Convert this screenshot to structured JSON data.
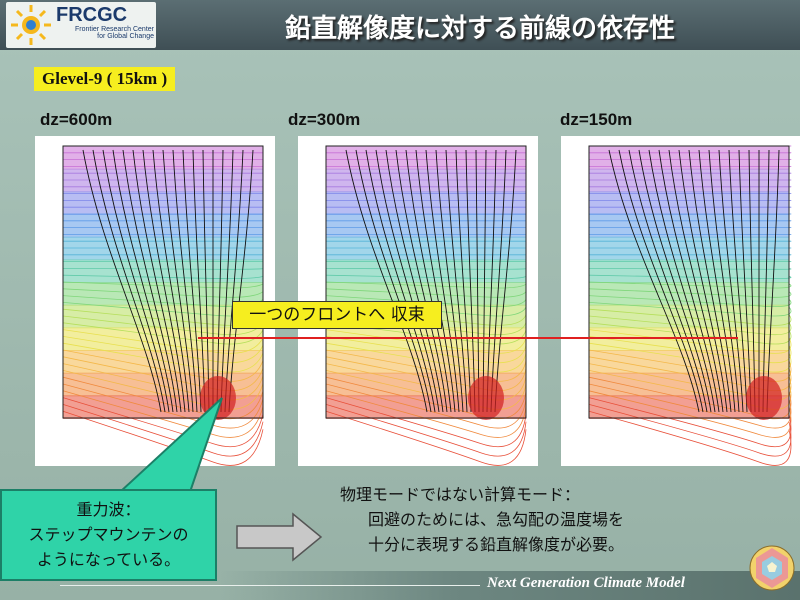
{
  "header": {
    "logo_name": "FRCGC",
    "logo_sub": "Frontier Research Center for Global Change",
    "title": "鉛直解像度に対する前線の依存性"
  },
  "glevel_label": "Glevel-9 ( 15km )",
  "panels": [
    {
      "label": "dz=600m"
    },
    {
      "label": "dz=300m"
    },
    {
      "label": "dz=150m"
    }
  ],
  "convergence_label": "一つのフロントへ 収束",
  "callout": {
    "line1": "重力波：",
    "line2": "ステップマウンテンの",
    "line3": "ようになっている。"
  },
  "note": {
    "line1": "物理モードではない計算モード：",
    "line2": "回避のためには、急勾配の温度場を",
    "line3": "十分に表現する鉛直解像度が必要。"
  },
  "footer": {
    "text": "Next Generation Climate Model"
  },
  "colors": {
    "accent_yellow": "#f6ee1f",
    "callout_green": "#2fd3a8",
    "convergence_line": "#e02020"
  }
}
